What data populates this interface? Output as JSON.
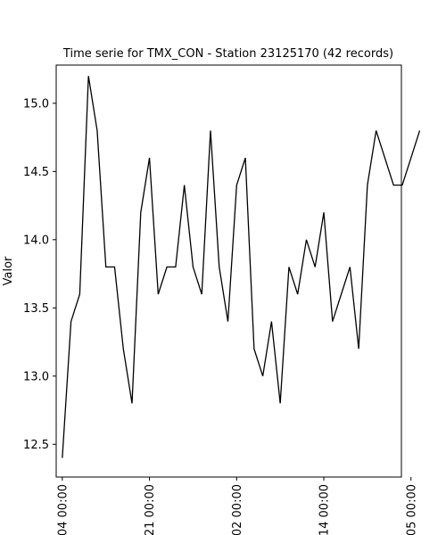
{
  "chart_data": {
    "type": "line",
    "title": "Time serie for TMX_CON - Station 23125170 (42 records)",
    "xlabel": "",
    "ylabel": "Valor",
    "ylim": [
      12.26,
      15.28
    ],
    "yticks": [
      12.5,
      13.0,
      13.5,
      14.0,
      14.5,
      15.0
    ],
    "ytick_labels": [
      "12.5",
      "13.0",
      "13.5",
      "14.0",
      "14.5",
      "15.0"
    ],
    "xlim": [
      -0.7,
      38.9
    ],
    "xticks": [
      0,
      10,
      20,
      30,
      40
    ],
    "xtick_labels": [
      "04 00:00",
      "21 00:00",
      "02 00:00",
      "14 00:00",
      "05 00:00"
    ],
    "line_color": "#000000",
    "series": [
      {
        "name": "TMX_CON",
        "x": [
          0,
          1,
          2,
          3,
          4,
          5,
          6,
          7,
          8,
          9,
          10,
          11,
          12,
          13,
          14,
          15,
          16,
          17,
          18,
          19,
          20,
          21,
          22,
          23,
          24,
          25,
          26,
          27,
          28,
          29,
          30,
          31,
          32,
          33,
          34,
          35,
          36,
          37,
          38,
          39,
          40,
          41
        ],
        "values": [
          12.4,
          13.4,
          13.6,
          15.2,
          14.8,
          13.8,
          13.8,
          13.2,
          12.8,
          14.2,
          14.6,
          13.6,
          13.8,
          13.8,
          14.4,
          13.8,
          13.6,
          14.8,
          13.8,
          13.4,
          14.4,
          14.6,
          13.2,
          13.0,
          13.4,
          12.8,
          13.8,
          13.6,
          14.0,
          13.8,
          14.2,
          13.4,
          13.6,
          13.8,
          13.2,
          14.4,
          14.8,
          14.6,
          14.4,
          14.4,
          14.6,
          14.8
        ]
      }
    ]
  }
}
